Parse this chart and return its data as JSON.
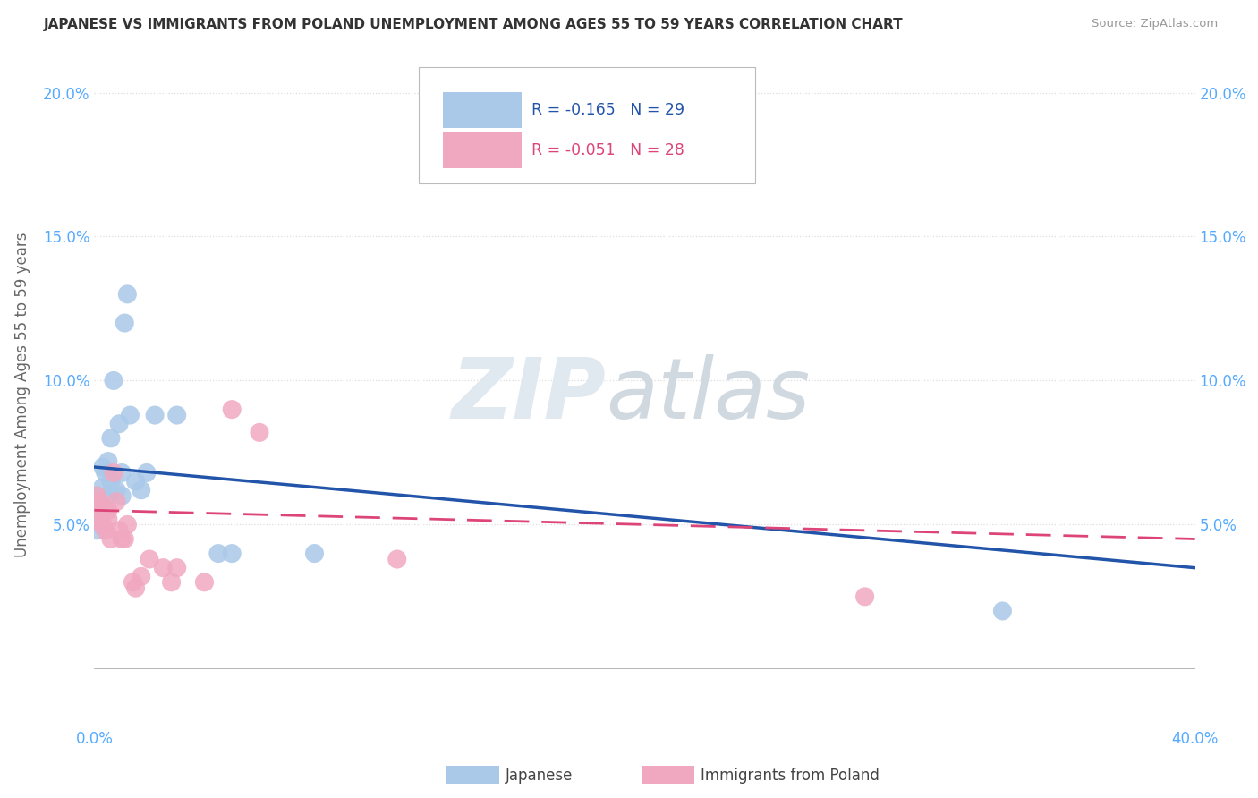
{
  "title": "JAPANESE VS IMMIGRANTS FROM POLAND UNEMPLOYMENT AMONG AGES 55 TO 59 YEARS CORRELATION CHART",
  "source": "Source: ZipAtlas.com",
  "ylabel": "Unemployment Among Ages 55 to 59 years",
  "xlim": [
    0.0,
    0.4
  ],
  "ylim": [
    -0.02,
    0.21
  ],
  "yticks": [
    0.0,
    0.05,
    0.1,
    0.15,
    0.2
  ],
  "ytick_labels": [
    "",
    "5.0%",
    "10.0%",
    "15.0%",
    "20.0%"
  ],
  "japanese_color": "#aac8e8",
  "poland_color": "#f0a8c0",
  "japanese_line_color": "#2255aa",
  "poland_line_color": "#dd4477",
  "legend_japanese_R": "-0.165",
  "legend_japanese_N": "29",
  "legend_poland_R": "-0.051",
  "legend_poland_N": "28",
  "background_color": "#ffffff",
  "japanese_x": [
    0.001,
    0.001,
    0.002,
    0.002,
    0.003,
    0.003,
    0.004,
    0.005,
    0.005,
    0.006,
    0.006,
    0.007,
    0.008,
    0.009,
    0.01,
    0.01,
    0.011,
    0.012,
    0.013,
    0.015,
    0.017,
    0.019,
    0.022,
    0.03,
    0.045,
    0.05,
    0.08,
    0.33,
    0.001
  ],
  "japanese_y": [
    0.055,
    0.06,
    0.057,
    0.05,
    0.063,
    0.07,
    0.068,
    0.06,
    0.072,
    0.065,
    0.08,
    0.1,
    0.062,
    0.085,
    0.068,
    0.06,
    0.12,
    0.13,
    0.088,
    0.065,
    0.062,
    0.068,
    0.088,
    0.088,
    0.04,
    0.04,
    0.04,
    0.02,
    0.048
  ],
  "poland_x": [
    0.001,
    0.001,
    0.002,
    0.003,
    0.004,
    0.005,
    0.005,
    0.006,
    0.007,
    0.008,
    0.009,
    0.01,
    0.011,
    0.012,
    0.014,
    0.015,
    0.017,
    0.02,
    0.025,
    0.028,
    0.03,
    0.04,
    0.05,
    0.06,
    0.11,
    0.28,
    0.002,
    0.003
  ],
  "poland_y": [
    0.06,
    0.055,
    0.058,
    0.05,
    0.048,
    0.055,
    0.052,
    0.045,
    0.068,
    0.058,
    0.048,
    0.045,
    0.045,
    0.05,
    0.03,
    0.028,
    0.032,
    0.038,
    0.035,
    0.03,
    0.035,
    0.03,
    0.09,
    0.082,
    0.038,
    0.025,
    0.055,
    0.05
  ],
  "grid_color": "#dddddd",
  "tick_color": "#55aaff"
}
